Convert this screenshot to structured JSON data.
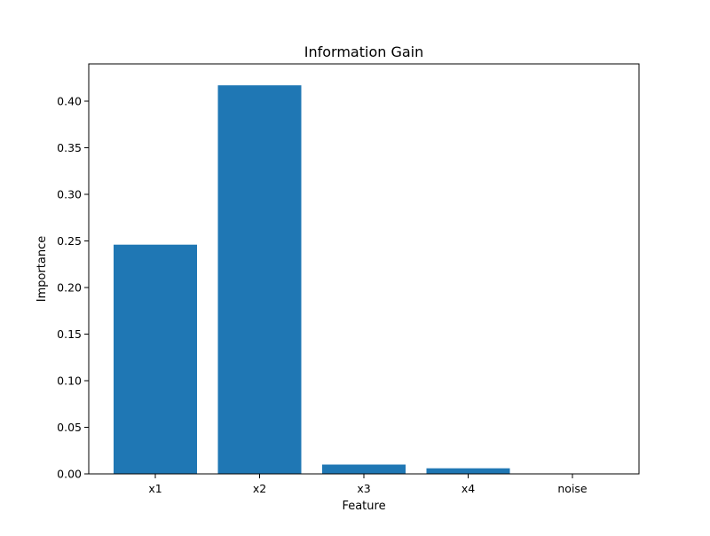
{
  "chart_data": {
    "type": "bar",
    "title": "Information Gain",
    "xlabel": "Feature",
    "ylabel": "Importance",
    "categories": [
      "x1",
      "x2",
      "x3",
      "x4",
      "noise"
    ],
    "values": [
      0.246,
      0.417,
      0.01,
      0.006,
      0.0
    ],
    "ylim": [
      0,
      0.44
    ],
    "yticks": [
      "0.00",
      "0.05",
      "0.10",
      "0.15",
      "0.20",
      "0.25",
      "0.30",
      "0.35",
      "0.40"
    ],
    "bar_color": "#1f77b4",
    "grid": false,
    "legend": "none"
  }
}
